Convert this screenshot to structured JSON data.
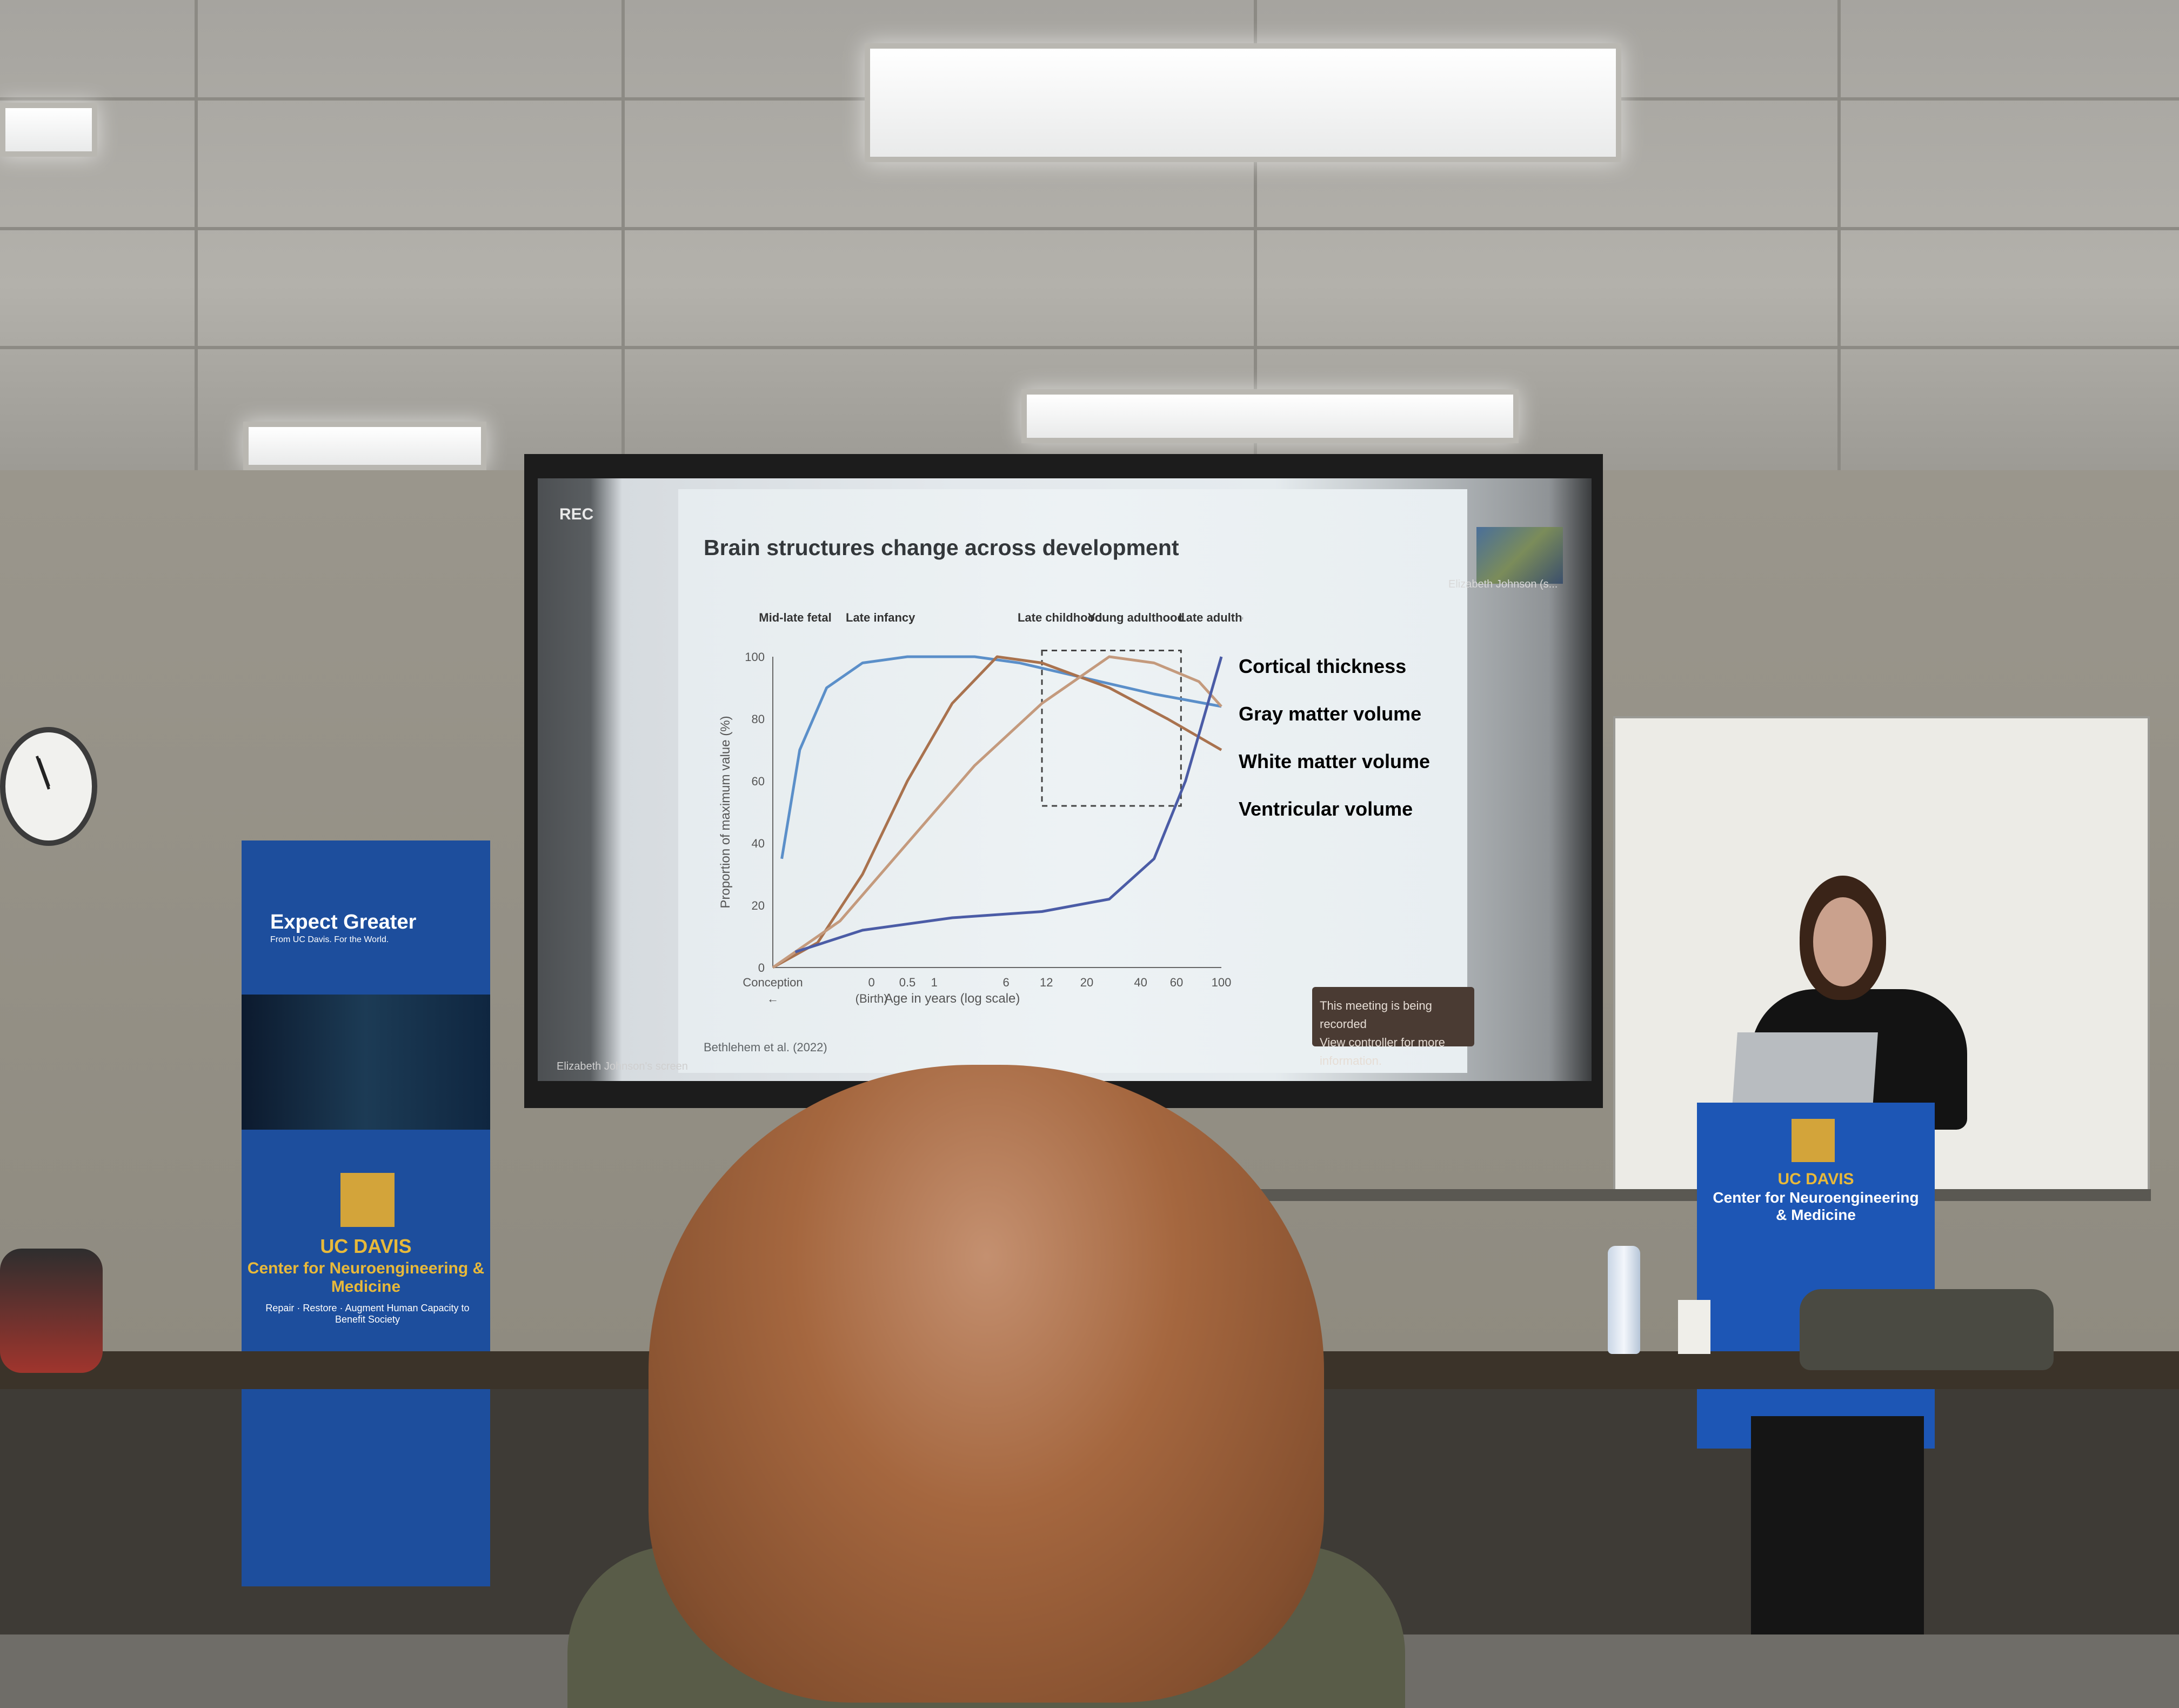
{
  "slide": {
    "title": "Brain structures change across development",
    "citation": "Bethlehem et al. (2022)",
    "recording_indicator": "REC",
    "recording_notice_line1": "This meeting is being recorded",
    "recording_notice_line2": "View controller for more information.",
    "participant_label": "Elizabeth Johnson (s...",
    "share_label": "Elizabeth Johnson's screen",
    "chart_data": {
      "type": "line",
      "ylabel": "Proportion of maximum value (%)",
      "xlabel": "Age in years (log scale)",
      "ylim": [
        0,
        100
      ],
      "y_ticks": [
        "0",
        "20",
        "40",
        "60",
        "80",
        "100"
      ],
      "x_ticks": [
        "Conception",
        "0",
        "0.5",
        "1",
        "6",
        "12",
        "20",
        "40",
        "60",
        "100"
      ],
      "x_tick_note": "(Birth)",
      "x_tick_arrow": "←",
      "stages": [
        "Mid-late fetal",
        "Late infancy",
        "Late childhood",
        "Young adulthood",
        "Late adulthood"
      ],
      "series": [
        {
          "name": "Cortical thickness",
          "color": "#5b8fc9",
          "points": [
            [
              0.02,
              35
            ],
            [
              0.06,
              70
            ],
            [
              0.12,
              90
            ],
            [
              0.2,
              98
            ],
            [
              0.3,
              100
            ],
            [
              0.45,
              100
            ],
            [
              0.55,
              98
            ],
            [
              0.7,
              93
            ],
            [
              0.85,
              88
            ],
            [
              1.0,
              84
            ]
          ]
        },
        {
          "name": "Gray matter volume",
          "color": "#a9724e",
          "points": [
            [
              0,
              0
            ],
            [
              0.1,
              8
            ],
            [
              0.2,
              30
            ],
            [
              0.3,
              60
            ],
            [
              0.4,
              85
            ],
            [
              0.5,
              100
            ],
            [
              0.6,
              98
            ],
            [
              0.75,
              90
            ],
            [
              0.88,
              80
            ],
            [
              1.0,
              70
            ]
          ]
        },
        {
          "name": "White matter volume",
          "color": "#c49a7d",
          "points": [
            [
              0,
              0
            ],
            [
              0.15,
              15
            ],
            [
              0.3,
              40
            ],
            [
              0.45,
              65
            ],
            [
              0.6,
              85
            ],
            [
              0.75,
              100
            ],
            [
              0.85,
              98
            ],
            [
              0.95,
              92
            ],
            [
              1.0,
              84
            ]
          ]
        },
        {
          "name": "Ventricular volume",
          "color": "#4b5ca6",
          "points": [
            [
              0.05,
              5
            ],
            [
              0.2,
              12
            ],
            [
              0.4,
              16
            ],
            [
              0.6,
              18
            ],
            [
              0.75,
              22
            ],
            [
              0.85,
              35
            ],
            [
              0.92,
              60
            ],
            [
              1.0,
              100
            ]
          ]
        }
      ]
    }
  },
  "banner": {
    "tagline": "Expect Greater",
    "subtagline": "From UC Davis. For the World.",
    "university": "UC DAVIS",
    "center": "Center for Neuroengineering & Medicine",
    "motto": "Repair · Restore · Augment Human Capacity to Benefit Society"
  },
  "podium": {
    "university": "UC DAVIS",
    "center": "Center for Neuroengineering & Medicine"
  }
}
